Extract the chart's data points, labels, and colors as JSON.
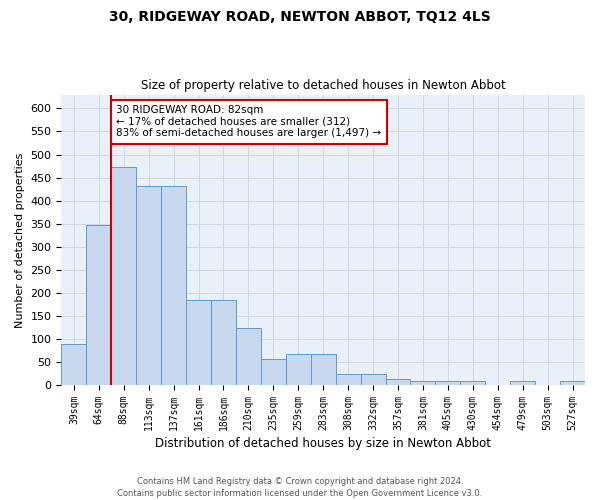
{
  "title": "30, RIDGEWAY ROAD, NEWTON ABBOT, TQ12 4LS",
  "subtitle": "Size of property relative to detached houses in Newton Abbot",
  "xlabel": "Distribution of detached houses by size in Newton Abbot",
  "ylabel": "Number of detached properties",
  "bar_color": "#c8d8ee",
  "bar_edge_color": "#5b9bd5",
  "categories": [
    "39sqm",
    "64sqm",
    "88sqm",
    "113sqm",
    "137sqm",
    "161sqm",
    "186sqm",
    "210sqm",
    "235sqm",
    "259sqm",
    "283sqm",
    "308sqm",
    "332sqm",
    "357sqm",
    "381sqm",
    "405sqm",
    "430sqm",
    "454sqm",
    "479sqm",
    "503sqm",
    "527sqm"
  ],
  "values": [
    90,
    348,
    473,
    432,
    432,
    184,
    184,
    124,
    57,
    68,
    68,
    24,
    24,
    13,
    8,
    8,
    8,
    0,
    8,
    0,
    8
  ],
  "ylim": [
    0,
    630
  ],
  "yticks": [
    0,
    50,
    100,
    150,
    200,
    250,
    300,
    350,
    400,
    450,
    500,
    550,
    600
  ],
  "vline_color": "#cc0000",
  "vline_x": 1.5,
  "annotation_text": "30 RIDGEWAY ROAD: 82sqm\n← 17% of detached houses are smaller (312)\n83% of semi-detached houses are larger (1,497) →",
  "annotation_box_facecolor": "#ffffff",
  "annotation_box_edgecolor": "#cc0000",
  "grid_color": "#d0d8e8",
  "background_color": "#eaf0f8",
  "footer_text": "Contains HM Land Registry data © Crown copyright and database right 2024.\nContains public sector information licensed under the Open Government Licence v3.0."
}
